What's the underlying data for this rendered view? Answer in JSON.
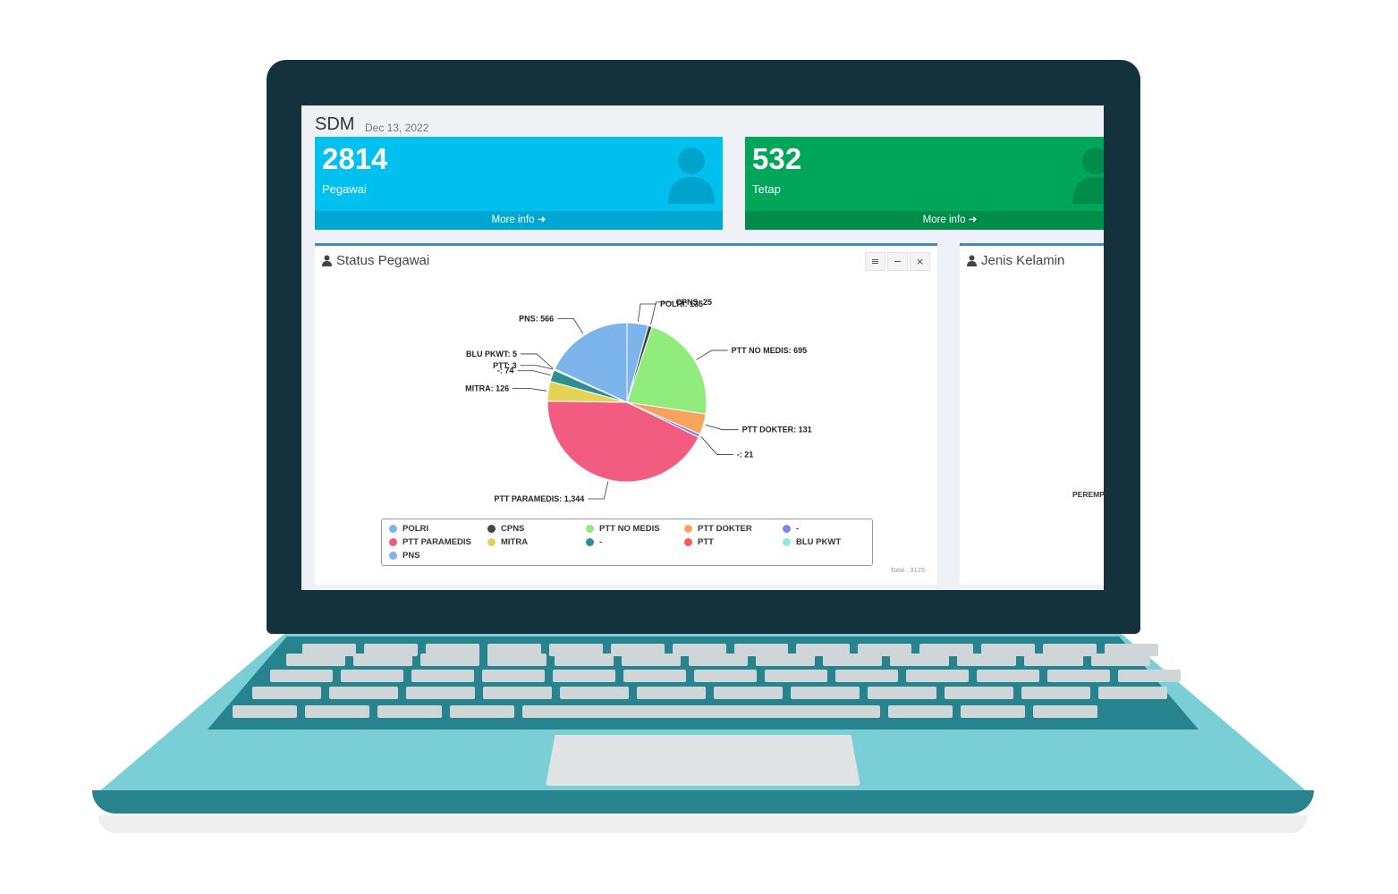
{
  "dashboard": {
    "title": "SDM",
    "date": "Dec 13, 2022"
  },
  "stats": [
    {
      "value": "2814",
      "label": "Pegawai",
      "more": "More info ➜",
      "color": "#00c0ef"
    },
    {
      "value": "532",
      "label": "Tetap",
      "more": "More info ➜",
      "color": "#00a65a"
    }
  ],
  "status_box": {
    "title": "Status Pegawai",
    "tools": [
      "≡",
      "−",
      "×"
    ],
    "total": "Total : 3125"
  },
  "gender_box": {
    "title": "Jenis Kelamin",
    "slice_label": "PEREMP"
  },
  "chart_data": {
    "type": "pie",
    "labels": [
      "POLRI",
      "CPNS",
      "PTT NO MEDIS",
      "PTT DOKTER",
      "-",
      "PTT PARAMEDIS",
      "MITRA",
      "-",
      "PTT",
      "BLU PKWT",
      "PNS"
    ],
    "values": [
      135,
      25,
      695,
      131,
      21,
      1344,
      126,
      74,
      3,
      5,
      566
    ],
    "data_labels": [
      "POLRI: 135",
      "CPNS: 25",
      "PTT NO MEDIS: 695",
      "PTT DOKTER: 131",
      "-: 21",
      "PTT PARAMEDIS: 1,344",
      "MITRA: 126",
      "-: 74",
      "PTT: 3",
      "BLU PKWT: 5",
      "PNS: 566"
    ],
    "colors": [
      "#7cb5ec",
      "#434348",
      "#90ed7d",
      "#f7a35c",
      "#8085e9",
      "#f15c80",
      "#e4d354",
      "#2b908f",
      "#f45b5b",
      "#91e8e1",
      "#7cb5ec"
    ],
    "legend_placement": "bottom"
  }
}
